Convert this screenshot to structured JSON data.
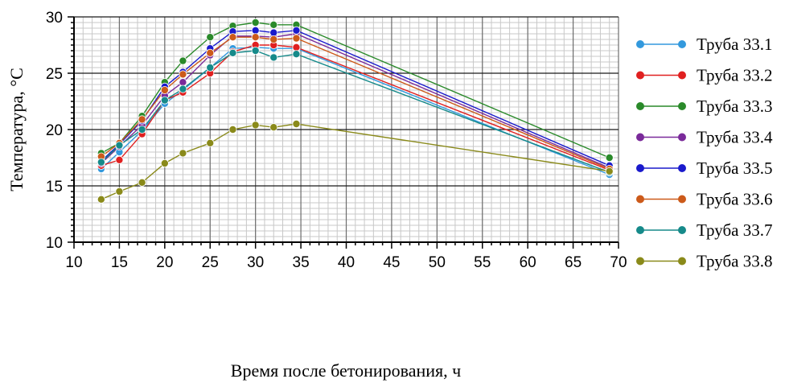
{
  "chart_data": {
    "type": "line",
    "title": "",
    "xlabel": "Время после бетонирования, ч",
    "ylabel": "Температура, °C",
    "xlim": [
      10,
      70
    ],
    "ylim": [
      10,
      30
    ],
    "x_ticks": [
      10,
      15,
      20,
      25,
      30,
      35,
      40,
      45,
      50,
      55,
      60,
      65,
      70
    ],
    "y_ticks": [
      10,
      15,
      20,
      25,
      30
    ],
    "grid": "major and minor",
    "legend_position": "right",
    "x": [
      13,
      15,
      17.5,
      20,
      22,
      25,
      27.5,
      30,
      32,
      34.5,
      69
    ],
    "series": [
      {
        "name": "Труба 33.1",
        "color": "#3399dd",
        "values": [
          16.5,
          18.0,
          19.9,
          22.3,
          23.5,
          25.5,
          27.2,
          27.3,
          27.2,
          27.2,
          16.0
        ]
      },
      {
        "name": "Труба 33.2",
        "color": "#e02020",
        "values": [
          16.8,
          17.3,
          19.6,
          22.6,
          23.3,
          25.0,
          26.9,
          27.5,
          27.5,
          27.3,
          16.4
        ]
      },
      {
        "name": "Труба 33.3",
        "color": "#2a8a2a",
        "values": [
          17.9,
          18.8,
          21.2,
          24.2,
          26.1,
          28.2,
          29.2,
          29.5,
          29.3,
          29.3,
          17.5
        ]
      },
      {
        "name": "Труба 33.4",
        "color": "#7a2a9a",
        "values": [
          17.0,
          18.5,
          20.4,
          23.0,
          24.2,
          26.6,
          28.3,
          28.3,
          28.2,
          28.5,
          16.6
        ]
      },
      {
        "name": "Труба 33.5",
        "color": "#1a1acc",
        "values": [
          17.2,
          18.7,
          20.8,
          23.8,
          25.1,
          27.2,
          28.7,
          28.8,
          28.6,
          28.8,
          16.8
        ]
      },
      {
        "name": "Труба 33.6",
        "color": "#cc5a1a",
        "values": [
          17.6,
          18.8,
          20.9,
          23.5,
          24.9,
          26.8,
          28.2,
          28.2,
          28.0,
          28.1,
          16.5
        ]
      },
      {
        "name": "Труба 33.7",
        "color": "#168a8a",
        "values": [
          17.1,
          18.6,
          20.0,
          22.6,
          23.6,
          25.5,
          26.8,
          27.0,
          26.4,
          26.7,
          16.2
        ]
      },
      {
        "name": "Труба 33.8",
        "color": "#8a8a1a",
        "values": [
          13.8,
          14.5,
          15.3,
          17.0,
          17.9,
          18.8,
          20.0,
          20.4,
          20.2,
          20.5,
          16.3
        ]
      }
    ]
  }
}
